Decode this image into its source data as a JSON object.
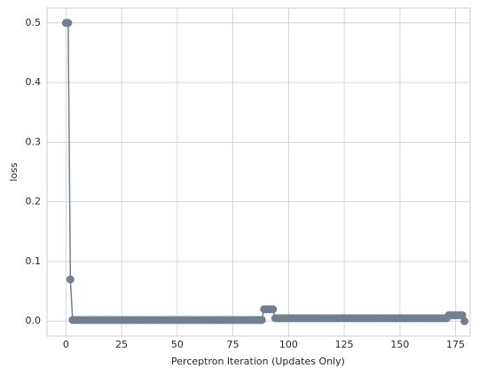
{
  "chart_data": {
    "type": "line",
    "xlabel": "Perceptron Iteration (Updates Only)",
    "ylabel": "loss",
    "x": [
      0,
      1,
      2,
      3,
      4,
      5,
      6,
      7,
      8,
      9,
      10,
      11,
      12,
      13,
      14,
      15,
      16,
      17,
      18,
      19,
      20,
      21,
      22,
      23,
      24,
      25,
      26,
      27,
      28,
      29,
      30,
      31,
      32,
      33,
      34,
      35,
      36,
      37,
      38,
      39,
      40,
      41,
      42,
      43,
      44,
      45,
      46,
      47,
      48,
      49,
      50,
      51,
      52,
      53,
      54,
      55,
      56,
      57,
      58,
      59,
      60,
      61,
      62,
      63,
      64,
      65,
      66,
      67,
      68,
      69,
      70,
      71,
      72,
      73,
      74,
      75,
      76,
      77,
      78,
      79,
      80,
      81,
      82,
      83,
      84,
      85,
      86,
      87,
      88,
      89,
      90,
      91,
      92,
      93,
      94,
      95,
      96,
      97,
      98,
      99,
      100,
      101,
      102,
      103,
      104,
      105,
      106,
      107,
      108,
      109,
      110,
      111,
      112,
      113,
      114,
      115,
      116,
      117,
      118,
      119,
      120,
      121,
      122,
      123,
      124,
      125,
      126,
      127,
      128,
      129,
      130,
      131,
      132,
      133,
      134,
      135,
      136,
      137,
      138,
      139,
      140,
      141,
      142,
      143,
      144,
      145,
      146,
      147,
      148,
      149,
      150,
      151,
      152,
      153,
      154,
      155,
      156,
      157,
      158,
      159,
      160,
      161,
      162,
      163,
      164,
      165,
      166,
      167,
      168,
      169,
      170,
      171,
      172,
      173,
      174,
      175,
      176,
      177,
      178,
      179
    ],
    "series": [
      {
        "name": "loss",
        "color": "#708090",
        "values": [
          0.5,
          0.5,
          0.07,
          0.002,
          0.002,
          0.002,
          0.002,
          0.002,
          0.002,
          0.002,
          0.002,
          0.002,
          0.002,
          0.002,
          0.002,
          0.002,
          0.002,
          0.002,
          0.002,
          0.002,
          0.002,
          0.002,
          0.002,
          0.002,
          0.002,
          0.002,
          0.002,
          0.002,
          0.002,
          0.002,
          0.002,
          0.002,
          0.002,
          0.002,
          0.002,
          0.002,
          0.002,
          0.002,
          0.002,
          0.002,
          0.002,
          0.002,
          0.002,
          0.002,
          0.002,
          0.002,
          0.002,
          0.002,
          0.002,
          0.002,
          0.002,
          0.002,
          0.002,
          0.002,
          0.002,
          0.002,
          0.002,
          0.002,
          0.002,
          0.002,
          0.002,
          0.002,
          0.002,
          0.002,
          0.002,
          0.002,
          0.002,
          0.002,
          0.002,
          0.002,
          0.002,
          0.002,
          0.002,
          0.002,
          0.002,
          0.002,
          0.002,
          0.002,
          0.002,
          0.002,
          0.002,
          0.002,
          0.002,
          0.002,
          0.002,
          0.002,
          0.002,
          0.002,
          0.002,
          0.02,
          0.02,
          0.02,
          0.02,
          0.02,
          0.005,
          0.005,
          0.005,
          0.005,
          0.005,
          0.005,
          0.005,
          0.005,
          0.005,
          0.005,
          0.005,
          0.005,
          0.005,
          0.005,
          0.005,
          0.005,
          0.005,
          0.005,
          0.005,
          0.005,
          0.005,
          0.005,
          0.005,
          0.005,
          0.005,
          0.005,
          0.005,
          0.005,
          0.005,
          0.005,
          0.005,
          0.005,
          0.005,
          0.005,
          0.005,
          0.005,
          0.005,
          0.005,
          0.005,
          0.005,
          0.005,
          0.005,
          0.005,
          0.005,
          0.005,
          0.005,
          0.005,
          0.005,
          0.005,
          0.005,
          0.005,
          0.005,
          0.005,
          0.005,
          0.005,
          0.005,
          0.005,
          0.005,
          0.005,
          0.005,
          0.005,
          0.005,
          0.005,
          0.005,
          0.005,
          0.005,
          0.005,
          0.005,
          0.005,
          0.005,
          0.005,
          0.005,
          0.005,
          0.005,
          0.005,
          0.005,
          0.005,
          0.005,
          0.01,
          0.01,
          0.01,
          0.01,
          0.01,
          0.01,
          0.01,
          0.0
        ]
      }
    ],
    "xlim": [
      -8.5,
      181.5
    ],
    "xticks": [
      0,
      25,
      50,
      75,
      100,
      125,
      150,
      175
    ],
    "ylim": [
      -0.025,
      0.525
    ],
    "yticks": [
      {
        "value": 0,
        "label": "0.0"
      },
      0.1,
      0.2,
      0.3,
      0.4,
      0.5
    ],
    "grid": true
  }
}
